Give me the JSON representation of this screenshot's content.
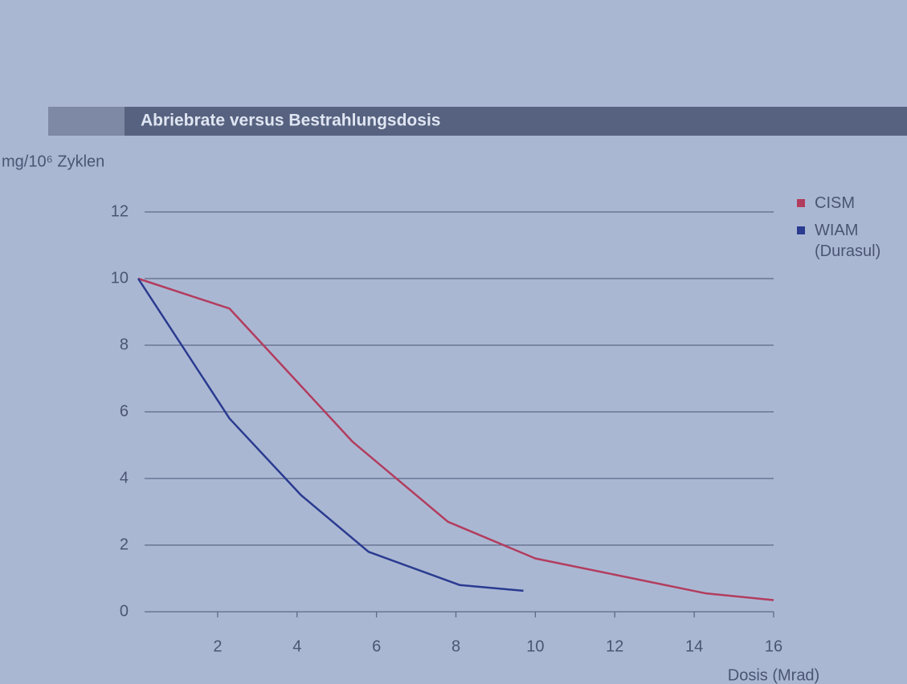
{
  "chart_data": {
    "type": "line",
    "title": "Abriebrate versus Bestrahlungsdosis",
    "y_label": "mg/10⁶ Zyklen",
    "x_label": "Dosis (Mrad)",
    "xlim": [
      0,
      16
    ],
    "xticks": [
      2,
      4,
      6,
      8,
      10,
      12,
      14,
      16
    ],
    "ylim": [
      0,
      12
    ],
    "yticks": [
      0,
      2,
      4,
      6,
      8,
      10,
      12
    ],
    "grid": true,
    "series": [
      {
        "name": "CISM",
        "color": "#b23d5e",
        "x": [
          0,
          2.3,
          5.4,
          7.8,
          10,
          14.3,
          16
        ],
        "values": [
          10,
          9.1,
          5.1,
          2.7,
          1.6,
          0.55,
          0.35
        ]
      },
      {
        "name": "WIAM (Durasul)",
        "color": "#2a3b90",
        "x": [
          0,
          2.3,
          4.1,
          5.8,
          8.1,
          9.7
        ],
        "values": [
          10,
          5.8,
          3.5,
          1.8,
          0.8,
          0.63
        ]
      }
    ]
  }
}
